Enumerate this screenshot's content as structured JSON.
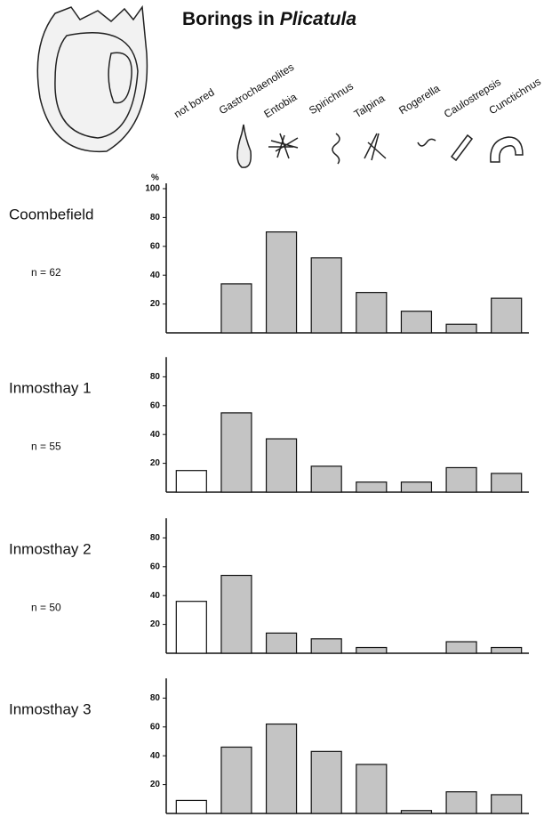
{
  "header": {
    "title": "Borings in",
    "title_italic": "Plicatula",
    "categories": [
      "not bored",
      "Gastrochaenolites",
      "Entobia",
      "Spirichnus",
      "Talpina",
      "Rogerella",
      "Caulostrepsis",
      "Cunctichnus"
    ],
    "colors": [
      "#ffffff",
      "#c4c4c4",
      "#c4c4c4",
      "#c4c4c4",
      "#c4c4c4",
      "#c4c4c4",
      "#c4c4c4",
      "#c4c4c4"
    ]
  },
  "chart_data": [
    {
      "type": "bar",
      "title": "Coombefield",
      "annotation": "n = 62",
      "y_label": "%",
      "values": [
        0,
        34,
        70,
        52,
        28,
        15,
        6,
        24
      ],
      "ylim": [
        0,
        100
      ],
      "yticks": [
        20,
        40,
        60,
        80,
        100
      ]
    },
    {
      "type": "bar",
      "title": "Inmosthay   1",
      "annotation": "n = 55",
      "values": [
        15,
        55,
        37,
        18,
        7,
        7,
        17,
        13
      ],
      "ylim": [
        0,
        90
      ],
      "yticks": [
        20,
        40,
        60,
        80
      ]
    },
    {
      "type": "bar",
      "title": "Inmosthay   2",
      "annotation": "n = 50",
      "values": [
        36,
        54,
        14,
        10,
        4,
        0,
        8,
        4
      ],
      "ylim": [
        0,
        90
      ],
      "yticks": [
        20,
        40,
        60,
        80
      ]
    },
    {
      "type": "bar",
      "title": "Inmosthay   3",
      "values": [
        9,
        46,
        62,
        43,
        34,
        2,
        15,
        13
      ],
      "ylim": [
        0,
        90
      ],
      "yticks": [
        20,
        40,
        60,
        80
      ]
    }
  ]
}
